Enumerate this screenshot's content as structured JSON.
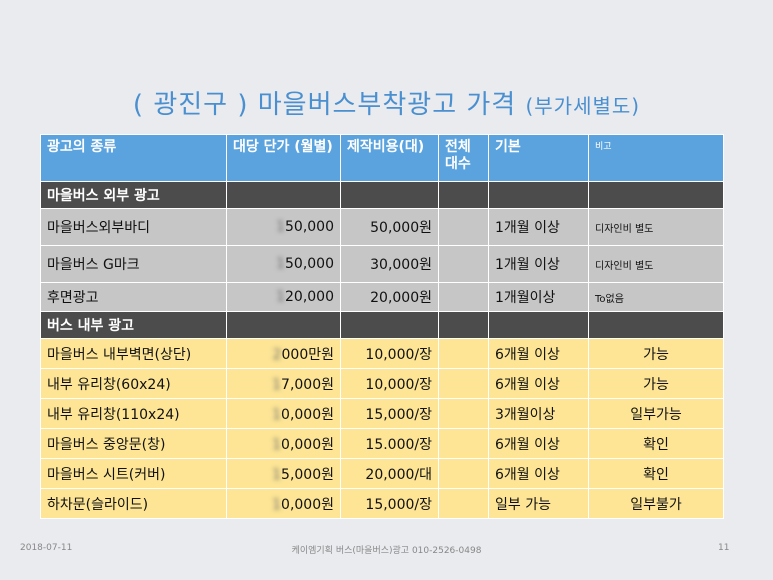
{
  "title": {
    "main": "( 광진구 )  마을버스부착광고 가격",
    "sub": "(부가세별도)"
  },
  "table": {
    "headers": [
      "광고의 종류",
      "대당 단가 (월별)",
      "제작비용(대)",
      "전체 대수",
      "기본",
      "비고"
    ],
    "section1": "마을버스 외부 광고",
    "rows1": [
      {
        "type": "마을버스외부바디",
        "price_hidden": "1",
        "price": "50,000",
        "prod": "50,000원",
        "total": "",
        "basic": "1개월 이상",
        "note": "디자인비 별도"
      },
      {
        "type": "마을버스 G마크",
        "price_hidden": "1",
        "price": "50,000",
        "prod": "30,000원",
        "total": "",
        "basic": "1개월 이상",
        "note": "디자인비 별도"
      },
      {
        "type": "후면광고",
        "price_hidden": "1",
        "price": "20,000",
        "prod": "20,000원",
        "total": "",
        "basic": "1개월이상",
        "note": "To없음"
      }
    ],
    "section2": "버스 내부 광고",
    "rows2": [
      {
        "type": "마을버스 내부벽면(상단)",
        "price_hidden": "2",
        "price": "000만원",
        "prod": "10,000/장",
        "total": "",
        "basic": "6개월 이상",
        "note": "가능"
      },
      {
        "type": " 내부 유리창(60x24)",
        "price_hidden": "1",
        "price": "7,000원",
        "prod": "10,000/장",
        "total": "",
        "basic": "6개월 이상",
        "note": "가능"
      },
      {
        "type": "내부 유리창(110x24)",
        "price_hidden": "1",
        "price": "0,000원",
        "prod": "15,000/장",
        "total": "",
        "basic": "3개월이상",
        "note": "일부가능"
      },
      {
        "type": "마을버스 중앙문(창)",
        "price_hidden": "1",
        "price": "0,000원",
        "prod": "15.000/장",
        "total": "",
        "basic": "6개월 이상",
        "note": "확인"
      },
      {
        "type": "마을버스 시트(커버)",
        "price_hidden": "1",
        "price": "5,000원",
        "prod": "20,000/대",
        "total": "",
        "basic": "6개월 이상",
        "note": "확인"
      },
      {
        "type": "하차문(슬라이드)",
        "price_hidden": "1",
        "price": "0,000원",
        "prod": "15,000/장",
        "total": "",
        "basic": "일부 가능",
        "note": "일부불가"
      }
    ]
  },
  "footer": {
    "date": "2018-07-11",
    "center": "케이엠기획 버스(마을버스)광고 010-2526-0498",
    "page": "11"
  }
}
